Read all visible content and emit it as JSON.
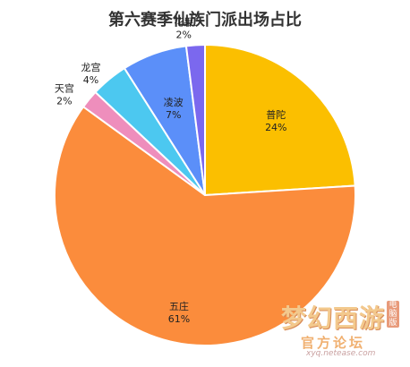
{
  "chart_data": {
    "type": "pie",
    "title": "第六赛季仙族门派出场占比",
    "slices": [
      {
        "name": "普陀",
        "percent_label": "24%",
        "value": 24,
        "color": "#fbbf00"
      },
      {
        "name": "五庄",
        "percent_label": "61%",
        "value": 61,
        "color": "#fb8c3c"
      },
      {
        "name": "天宫",
        "percent_label": "2%",
        "value": 2,
        "color": "#ee8ebc"
      },
      {
        "name": "龙宫",
        "percent_label": "4%",
        "value": 4,
        "color": "#4cc8f0"
      },
      {
        "name": "凌波",
        "percent_label": "7%",
        "value": 7,
        "color": "#5b8ff9"
      },
      {
        "name": "花果",
        "percent_label": "2%",
        "value": 2,
        "color": "#7b68ee"
      }
    ]
  },
  "watermark": {
    "main": "梦幻西游",
    "side": "电脑版",
    "sub": "官方论坛",
    "url": "xyq.netease.com"
  }
}
